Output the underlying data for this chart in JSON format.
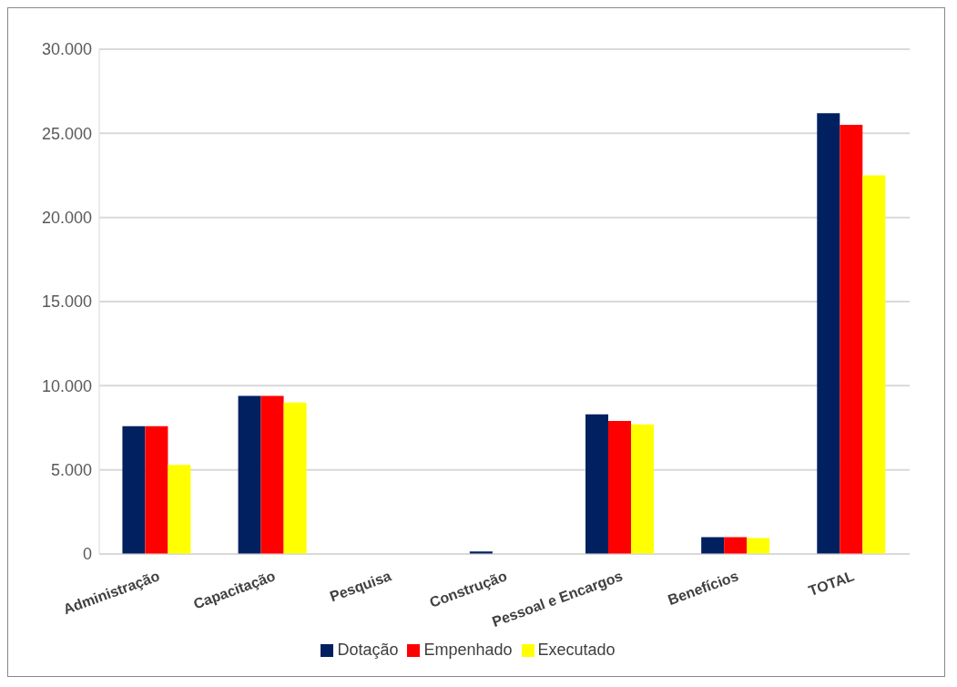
{
  "chart_data": {
    "type": "bar",
    "categories": [
      "Administração",
      "Capacitação",
      "Pesquisa",
      "Construção",
      "Pessoal e Encargos",
      "Benefícios",
      "TOTAL"
    ],
    "series": [
      {
        "name": "Dotação",
        "color": "#002060",
        "values": [
          7600,
          9400,
          0,
          150,
          8300,
          1000,
          26200
        ]
      },
      {
        "name": "Empenhado",
        "color": "#ff0000",
        "values": [
          7600,
          9400,
          0,
          0,
          7900,
          1000,
          25500
        ]
      },
      {
        "name": "Executado",
        "color": "#ffff00",
        "values": [
          5300,
          9000,
          0,
          0,
          7700,
          950,
          22500
        ]
      }
    ],
    "ylim": [
      0,
      30000
    ],
    "yticks": [
      0,
      {
        "value": 5000,
        "label": "5.000"
      },
      {
        "value": 10000,
        "label": "10.000"
      },
      {
        "value": 15000,
        "label": "15.000"
      },
      {
        "value": 20000,
        "label": "20.000"
      },
      {
        "value": 25000,
        "label": "25.000"
      },
      {
        "value": 30000,
        "label": "30.000"
      }
    ],
    "grid": "y",
    "legend": "bottom"
  }
}
